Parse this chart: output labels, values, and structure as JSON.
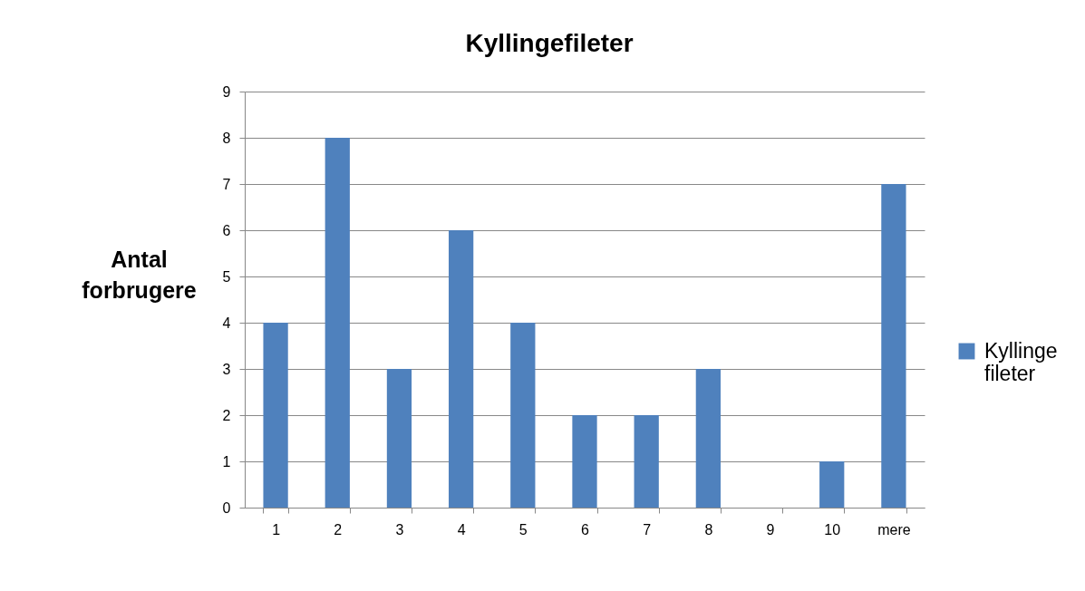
{
  "chart_data": {
    "type": "bar",
    "title": "Kyllingefileter",
    "ylabel": "Antal forbrugere",
    "categories": [
      "1",
      "2",
      "3",
      "4",
      "5",
      "6",
      "7",
      "8",
      "9",
      "10",
      "mere"
    ],
    "series": [
      {
        "name": "Kyllinge fileter",
        "color": "#4f81bd",
        "values": [
          4,
          8,
          3,
          6,
          4,
          2,
          2,
          3,
          0,
          1,
          7
        ]
      }
    ],
    "ylim": [
      0,
      9
    ],
    "yticks": [
      0,
      1,
      2,
      3,
      4,
      5,
      6,
      7,
      8,
      9
    ],
    "grid": "y",
    "legend": "right"
  }
}
